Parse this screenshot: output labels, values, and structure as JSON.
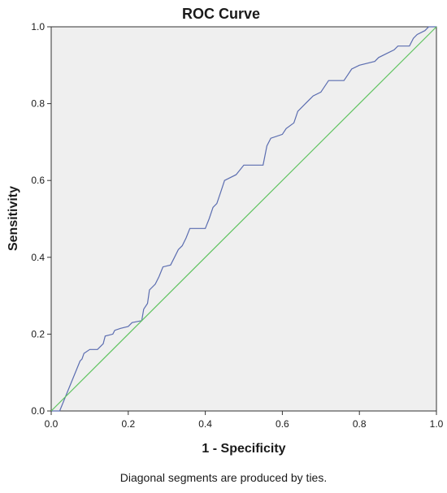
{
  "chart_data": {
    "type": "line",
    "title": "ROC Curve",
    "xlabel": "1 - Specificity",
    "ylabel": "Sensitivity",
    "xlim": [
      0.0,
      1.0
    ],
    "ylim": [
      0.0,
      1.0
    ],
    "xticks": [
      "0.0",
      "0.2",
      "0.4",
      "0.6",
      "0.8",
      "1.0"
    ],
    "yticks": [
      "0.0",
      "0.2",
      "0.4",
      "0.6",
      "0.8",
      "1.0"
    ],
    "grid": false,
    "background_color": "#efefef",
    "series": [
      {
        "color": "#5b6db0",
        "points": [
          [
            0.0,
            0.0
          ],
          [
            0.022,
            0.0
          ],
          [
            0.075,
            0.13
          ],
          [
            0.08,
            0.135
          ],
          [
            0.085,
            0.15
          ],
          [
            0.1,
            0.16
          ],
          [
            0.12,
            0.16
          ],
          [
            0.135,
            0.175
          ],
          [
            0.14,
            0.195
          ],
          [
            0.16,
            0.2
          ],
          [
            0.165,
            0.21
          ],
          [
            0.18,
            0.215
          ],
          [
            0.2,
            0.22
          ],
          [
            0.21,
            0.23
          ],
          [
            0.235,
            0.235
          ],
          [
            0.24,
            0.265
          ],
          [
            0.25,
            0.28
          ],
          [
            0.255,
            0.315
          ],
          [
            0.27,
            0.33
          ],
          [
            0.28,
            0.35
          ],
          [
            0.29,
            0.375
          ],
          [
            0.31,
            0.38
          ],
          [
            0.32,
            0.4
          ],
          [
            0.33,
            0.42
          ],
          [
            0.34,
            0.43
          ],
          [
            0.35,
            0.45
          ],
          [
            0.36,
            0.475
          ],
          [
            0.4,
            0.475
          ],
          [
            0.41,
            0.5
          ],
          [
            0.42,
            0.53
          ],
          [
            0.43,
            0.54
          ],
          [
            0.44,
            0.57
          ],
          [
            0.45,
            0.6
          ],
          [
            0.46,
            0.605
          ],
          [
            0.48,
            0.615
          ],
          [
            0.5,
            0.64
          ],
          [
            0.55,
            0.64
          ],
          [
            0.56,
            0.69
          ],
          [
            0.57,
            0.71
          ],
          [
            0.6,
            0.72
          ],
          [
            0.61,
            0.735
          ],
          [
            0.63,
            0.75
          ],
          [
            0.64,
            0.78
          ],
          [
            0.66,
            0.8
          ],
          [
            0.68,
            0.82
          ],
          [
            0.7,
            0.83
          ],
          [
            0.72,
            0.86
          ],
          [
            0.76,
            0.86
          ],
          [
            0.77,
            0.875
          ],
          [
            0.78,
            0.89
          ],
          [
            0.8,
            0.9
          ],
          [
            0.84,
            0.91
          ],
          [
            0.85,
            0.92
          ],
          [
            0.87,
            0.93
          ],
          [
            0.89,
            0.94
          ],
          [
            0.9,
            0.95
          ],
          [
            0.93,
            0.95
          ],
          [
            0.94,
            0.97
          ],
          [
            0.95,
            0.98
          ],
          [
            0.97,
            0.99
          ],
          [
            0.98,
            1.0
          ],
          [
            1.0,
            1.0
          ]
        ]
      },
      {
        "color": "#5fc35f",
        "points": [
          [
            0.0,
            0.0
          ],
          [
            1.0,
            1.0
          ]
        ]
      }
    ]
  },
  "footnote": "Diagonal segments are produced by ties."
}
